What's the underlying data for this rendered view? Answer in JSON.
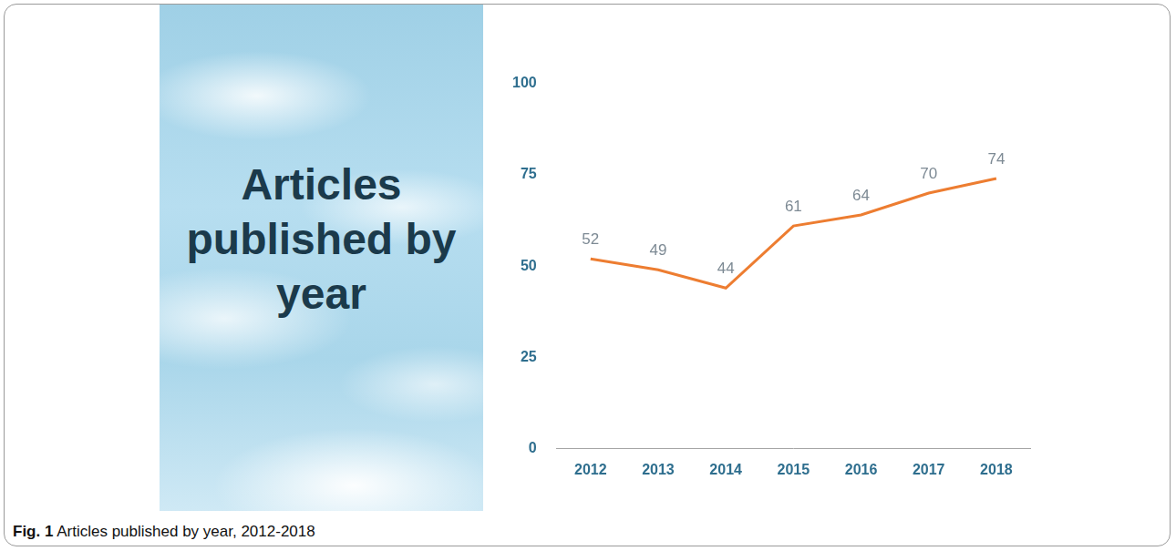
{
  "caption": {
    "label": "Fig. 1",
    "text": "Articles published by year, 2012-2018"
  },
  "chart_data": {
    "type": "line",
    "title": "Articles published by year",
    "categories": [
      "2012",
      "2013",
      "2014",
      "2015",
      "2016",
      "2017",
      "2018"
    ],
    "values": [
      52,
      49,
      44,
      61,
      64,
      70,
      74
    ],
    "color": "#ed7d31",
    "ylim": [
      0,
      100
    ],
    "yticks": [
      0,
      25,
      50,
      75,
      100
    ],
    "grid": false,
    "data_labels": true
  }
}
